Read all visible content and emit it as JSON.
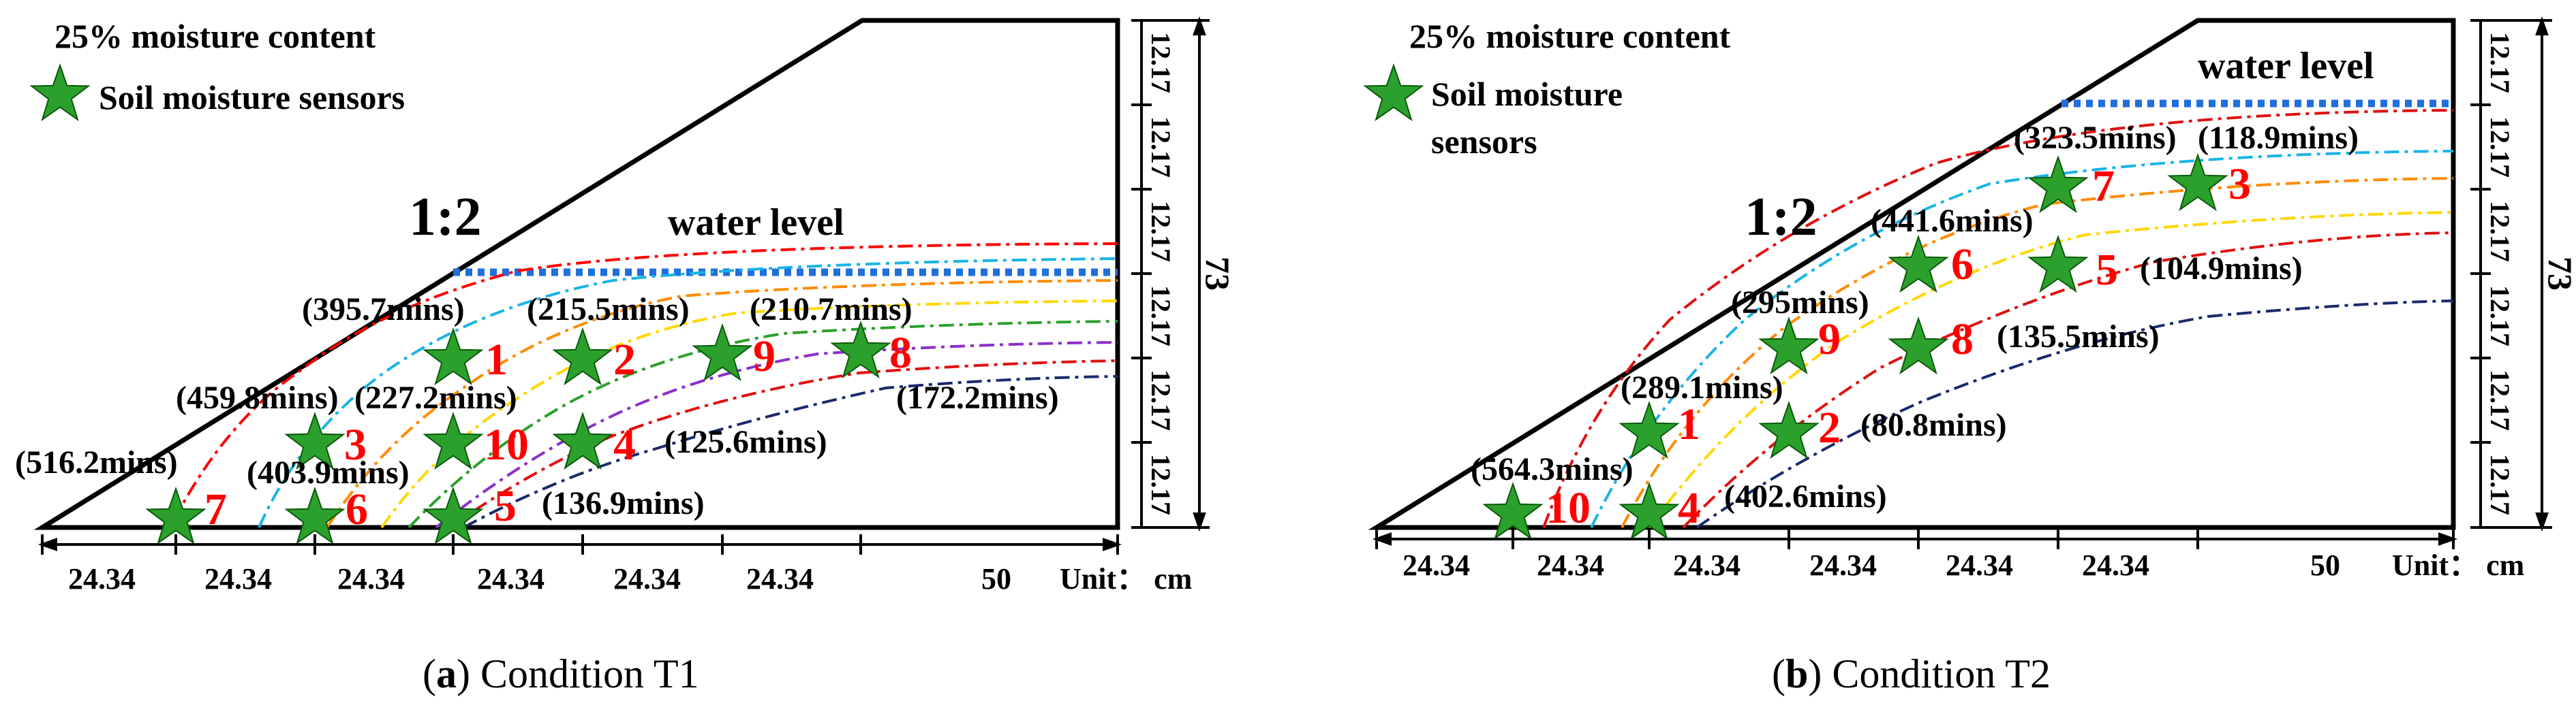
{
  "colors": {
    "outline": "#000000",
    "sensor_fill": "#2ca02c",
    "sensor_label": "#ff0000",
    "water_level": "#1f6fdc"
  },
  "panels": [
    {
      "id": "a",
      "legend_title": "25% moisture content",
      "legend_sensor_lines": [
        "Soil moisture sensors"
      ],
      "slope_label": "1:2",
      "water_level_label": "water level",
      "dimension_labels_bottom": [
        "24.34",
        "24.34",
        "24.34",
        "24.34",
        "24.34",
        "24.34",
        "50"
      ],
      "unit_label": "Unit： cm",
      "dimension_labels_right": [
        "12.17",
        "12.17",
        "12.17",
        "12.17",
        "12.17",
        "12.17"
      ],
      "height_label": "73",
      "caption_letter": "a",
      "caption_text": "Condition T1",
      "sensors": [
        {
          "id": "1",
          "time": "(395.7mins)"
        },
        {
          "id": "2",
          "time": "(215.5mins)"
        },
        {
          "id": "9",
          "time": "(210.7mins)"
        },
        {
          "id": "8",
          "time": "(172.2mins)"
        },
        {
          "id": "3",
          "time": "(459.8mins)"
        },
        {
          "id": "10",
          "time": "(227.2mins)"
        },
        {
          "id": "4",
          "time": "(125.6mins)"
        },
        {
          "id": "7",
          "time": "(516.2mins)"
        },
        {
          "id": "6",
          "time": "(403.9mins)"
        },
        {
          "id": "5",
          "time": "(136.9mins)"
        }
      ]
    },
    {
      "id": "b",
      "legend_title": "25% moisture content",
      "legend_sensor_lines": [
        "Soil moisture",
        "sensors"
      ],
      "slope_label": "1:2",
      "water_level_label": "water level",
      "dimension_labels_bottom": [
        "24.34",
        "24.34",
        "24.34",
        "24.34",
        "24.34",
        "24.34",
        "50"
      ],
      "unit_label": "Unit： cm",
      "dimension_labels_right": [
        "12.17",
        "12.17",
        "12.17",
        "12.17",
        "12.17",
        "12.17"
      ],
      "height_label": "73",
      "caption_letter": "b",
      "caption_text": "Condition T2",
      "sensors": [
        {
          "id": "7",
          "time": "(323.5mins)"
        },
        {
          "id": "3",
          "time": "(118.9mins)"
        },
        {
          "id": "6",
          "time": "(441.6mins)"
        },
        {
          "id": "5",
          "time": "(104.9mins)"
        },
        {
          "id": "9",
          "time": "(295mins)"
        },
        {
          "id": "8",
          "time": "(135.5mins)"
        },
        {
          "id": "1",
          "time": "(289.1mins)"
        },
        {
          "id": "2",
          "time": "(80.8mins)"
        },
        {
          "id": "10",
          "time": "(564.3mins)"
        },
        {
          "id": "4",
          "time": "(402.6mins)"
        }
      ]
    }
  ]
}
